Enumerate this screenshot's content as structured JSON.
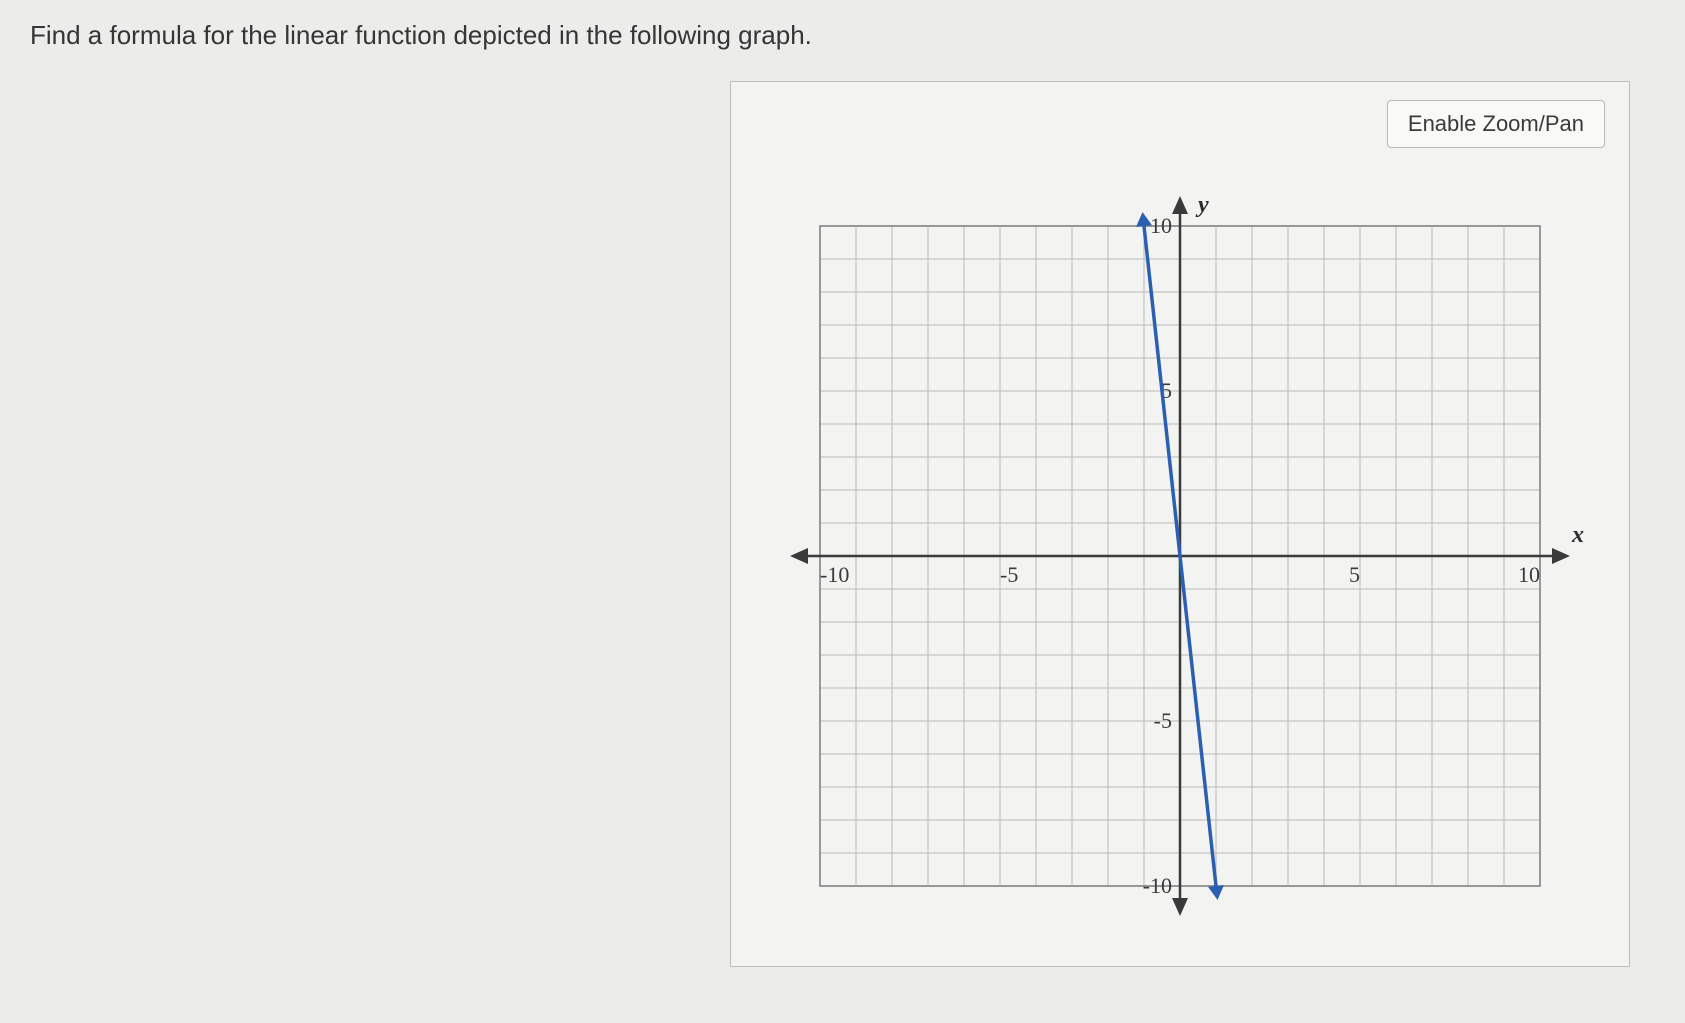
{
  "question": "Find a formula for the linear function depicted in the following graph.",
  "toolbar": {
    "zoom_label": "Enable Zoom/Pan"
  },
  "chart": {
    "type": "line",
    "x_axis_label": "x",
    "y_axis_label": "y",
    "xlim": [
      -10,
      10
    ],
    "ylim": [
      -10,
      10
    ],
    "xtick_step": 1,
    "ytick_step": 1,
    "xtick_labels": {
      "-10": "-10",
      "-5": "-5",
      "5": "5",
      "10": "10"
    },
    "ytick_labels": {
      "-10": "-10",
      "-5": "-5",
      "5": "5",
      "10": "10"
    },
    "grid_color": "#b9b9b9",
    "axis_color": "#3a3a3a",
    "background_color": "#f3f3f1",
    "line": {
      "color": "#2b5fb0",
      "width": 3.5,
      "p1": {
        "x": -1,
        "y": 10
      },
      "p2": {
        "x": 1,
        "y": -10
      }
    }
  },
  "colors": {
    "page_bg": "#ececea",
    "panel_border": "#bcbcbc",
    "button_bg": "#f9f9f7",
    "button_border": "#b8b8b8",
    "text": "#3a3a3a"
  }
}
